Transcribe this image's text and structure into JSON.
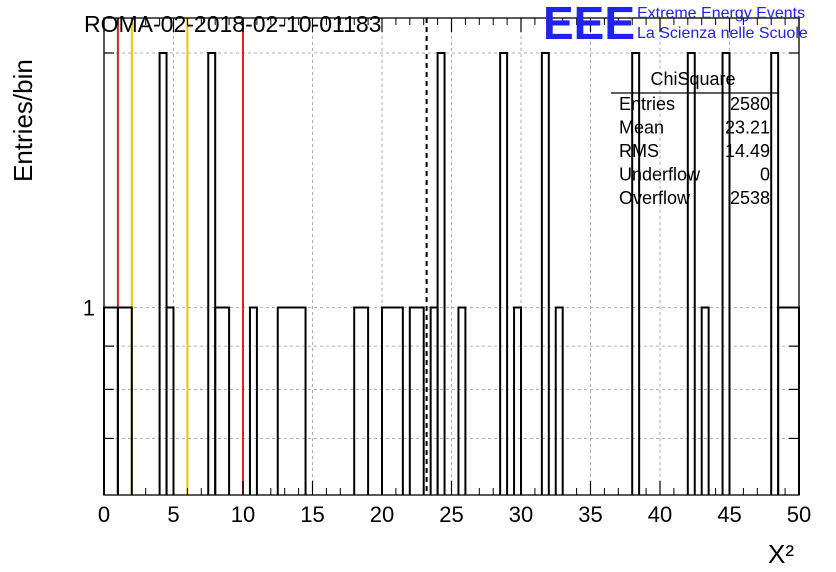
{
  "header": {
    "title": "ROMA-02-2018-02-10-01183",
    "logo_text": "EEE",
    "logo_line1": "Extreme Energy Events",
    "logo_line2": "La Scienza nelle Scuole"
  },
  "stats": {
    "name": "ChiSquare",
    "rows": [
      {
        "label": "Entries",
        "value": "2580"
      },
      {
        "label": "Mean",
        "value": "23.21"
      },
      {
        "label": "RMS",
        "value": "14.49"
      },
      {
        "label": "Underflow",
        "value": "0"
      },
      {
        "label": "Overflow",
        "value": "2538"
      }
    ]
  },
  "colors": {
    "red_line": "#dd2222",
    "yellow_line": "#f2c200",
    "histogram": "#000000",
    "logo": "#2222ee"
  },
  "chart_data": {
    "type": "histogram",
    "title": "ROMA-02-2018-02-10-01183",
    "xlabel": "X²",
    "ylabel": "Entries/bin",
    "xlim": [
      0,
      50
    ],
    "ylim": [
      0.6,
      2.2
    ],
    "y_scale": "log",
    "x_ticks": [
      0,
      5,
      10,
      15,
      20,
      25,
      30,
      35,
      40,
      45,
      50
    ],
    "y_tick_labels": [
      {
        "value": 1,
        "label": "1"
      }
    ],
    "grid": true,
    "bins": [
      {
        "x0": 0.0,
        "x1": 1.0,
        "count": 1
      },
      {
        "x0": 1.0,
        "x1": 2.0,
        "count": 1
      },
      {
        "x0": 4.0,
        "x1": 4.5,
        "count": 2
      },
      {
        "x0": 4.5,
        "x1": 5.0,
        "count": 1
      },
      {
        "x0": 7.5,
        "x1": 8.0,
        "count": 2
      },
      {
        "x0": 8.0,
        "x1": 9.0,
        "count": 1
      },
      {
        "x0": 10.5,
        "x1": 11.0,
        "count": 1
      },
      {
        "x0": 12.5,
        "x1": 14.5,
        "count": 1
      },
      {
        "x0": 18.0,
        "x1": 19.0,
        "count": 1
      },
      {
        "x0": 20.0,
        "x1": 21.5,
        "count": 1
      },
      {
        "x0": 22.0,
        "x1": 23.0,
        "count": 1
      },
      {
        "x0": 23.5,
        "x1": 24.0,
        "count": 1
      },
      {
        "x0": 24.0,
        "x1": 24.5,
        "count": 2
      },
      {
        "x0": 25.5,
        "x1": 26.0,
        "count": 1
      },
      {
        "x0": 28.5,
        "x1": 29.0,
        "count": 2
      },
      {
        "x0": 29.5,
        "x1": 30.0,
        "count": 1
      },
      {
        "x0": 31.5,
        "x1": 32.0,
        "count": 2
      },
      {
        "x0": 32.5,
        "x1": 33.0,
        "count": 1
      },
      {
        "x0": 38.0,
        "x1": 38.5,
        "count": 2
      },
      {
        "x0": 42.0,
        "x1": 42.5,
        "count": 2
      },
      {
        "x0": 43.0,
        "x1": 43.5,
        "count": 1
      },
      {
        "x0": 44.5,
        "x1": 45.0,
        "count": 2
      },
      {
        "x0": 48.0,
        "x1": 48.5,
        "count": 2
      },
      {
        "x0": 48.5,
        "x1": 50.0,
        "count": 1
      }
    ],
    "vertical_lines": [
      {
        "x": 1.0,
        "color": "red"
      },
      {
        "x": 2.0,
        "color": "yellow"
      },
      {
        "x": 6.0,
        "color": "yellow"
      },
      {
        "x": 10.0,
        "color": "red"
      },
      {
        "x": 23.21,
        "color": "black",
        "style": "dashed"
      }
    ]
  }
}
